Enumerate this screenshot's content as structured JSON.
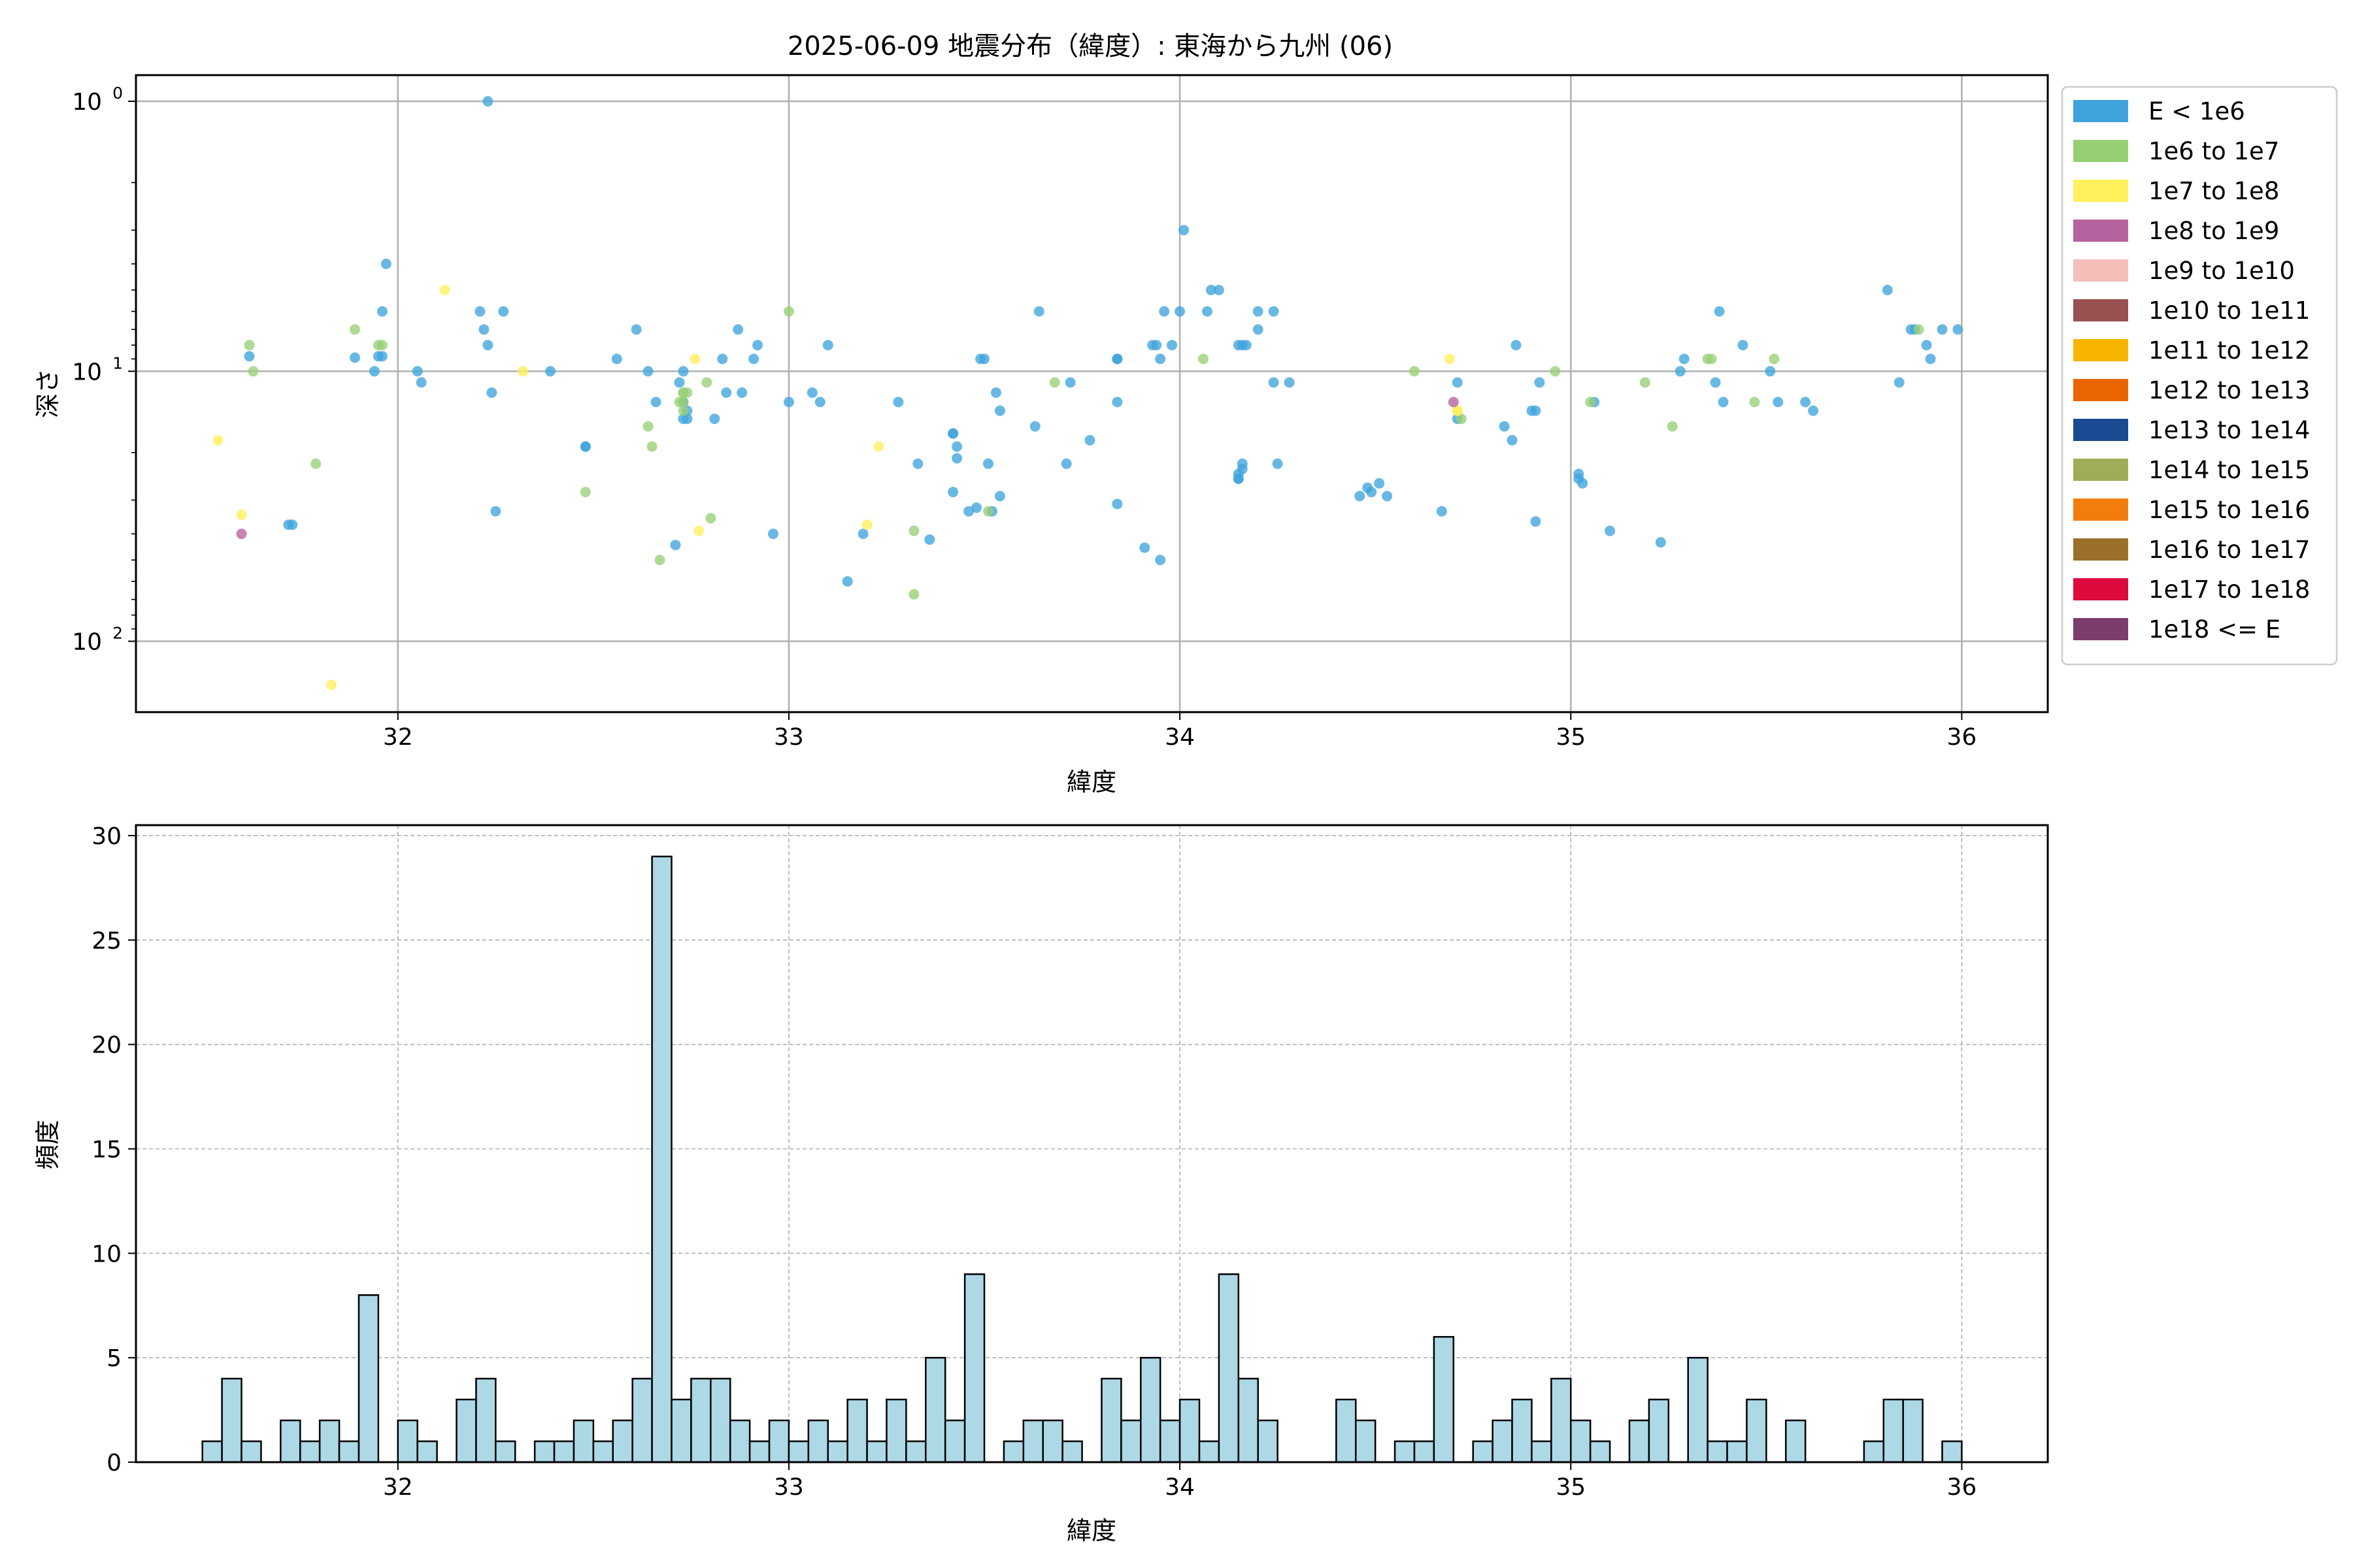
{
  "chart_data": [
    {
      "type": "scatter",
      "title": "2025-06-09 地震分布（緯度）: 東海から九州 (06)",
      "xlabel": "緯度",
      "ylabel": "深さ",
      "xlim": [
        31.33,
        36.22
      ],
      "ylim": [
        183,
        0.8
      ],
      "yscale": "log",
      "y_inverted": true,
      "x_ticks": [
        "32",
        "33",
        "34",
        "35",
        "36"
      ],
      "y_ticks": [
        {
          "label_base": "10",
          "label_exp": "0",
          "value": 1
        },
        {
          "label_base": "10",
          "label_exp": "1",
          "value": 10
        },
        {
          "label_base": "10",
          "label_exp": "2",
          "value": 100
        }
      ],
      "grid": true,
      "legend_position": "outside right, top",
      "legend": [
        {
          "label": "E < 1e6",
          "color": "#3fa4dc"
        },
        {
          "label": "1e6 to 1e7",
          "color": "#97cf74"
        },
        {
          "label": "1e7 to 1e8",
          "color": "#fff05c"
        },
        {
          "label": "1e8 to 1e9",
          "color": "#b5629f"
        },
        {
          "label": "1e9 to 1e10",
          "color": "#f5beb9"
        },
        {
          "label": "1e10 to 1e11",
          "color": "#995050"
        },
        {
          "label": "1e11 to 1e12",
          "color": "#f7b400"
        },
        {
          "label": "1e12 to 1e13",
          "color": "#ea6500"
        },
        {
          "label": "1e13 to 1e14",
          "color": "#1a4a91"
        },
        {
          "label": "1e14 to 1e15",
          "color": "#9ead57"
        },
        {
          "label": "1e15 to 1e16",
          "color": "#f27d0c"
        },
        {
          "label": "1e16 to 1e17",
          "color": "#9b712a"
        },
        {
          "label": "1e17 to 1e18",
          "color": "#dd0a3d"
        },
        {
          "label": "1e18 <= E",
          "color": "#7c3c6c"
        }
      ],
      "series": [
        {
          "color": "#3fa4dc",
          "points": [
            [
              31.62,
              8.8
            ],
            [
              31.72,
              37
            ],
            [
              31.73,
              37
            ],
            [
              31.94,
              10
            ],
            [
              31.95,
              8.8
            ],
            [
              31.96,
              8.8
            ],
            [
              31.96,
              6
            ],
            [
              31.97,
              4
            ],
            [
              31.89,
              8.9
            ],
            [
              32.05,
              10
            ],
            [
              32.06,
              11
            ],
            [
              32.21,
              6
            ],
            [
              32.22,
              7
            ],
            [
              32.23,
              8
            ],
            [
              32.24,
              12
            ],
            [
              32.27,
              6
            ],
            [
              32.25,
              33
            ],
            [
              32.23,
              1
            ],
            [
              32.39,
              10
            ],
            [
              32.48,
              19
            ],
            [
              32.48,
              19
            ],
            [
              32.56,
              9
            ],
            [
              32.61,
              7
            ],
            [
              32.64,
              10
            ],
            [
              32.66,
              13
            ],
            [
              32.71,
              44
            ],
            [
              32.73,
              13
            ],
            [
              32.73,
              15
            ],
            [
              32.74,
              14
            ],
            [
              32.74,
              15
            ],
            [
              32.73,
              10
            ],
            [
              32.72,
              11
            ],
            [
              32.81,
              15
            ],
            [
              32.83,
              9
            ],
            [
              32.84,
              12
            ],
            [
              32.87,
              7
            ],
            [
              32.88,
              12
            ],
            [
              32.91,
              9
            ],
            [
              32.92,
              8
            ],
            [
              32.96,
              40
            ],
            [
              33.0,
              13
            ],
            [
              33.06,
              12
            ],
            [
              33.08,
              13
            ],
            [
              33.1,
              8
            ],
            [
              33.15,
              60
            ],
            [
              33.19,
              40
            ],
            [
              33.28,
              13
            ],
            [
              33.33,
              22
            ],
            [
              33.36,
              42
            ],
            [
              33.42,
              17
            ],
            [
              33.42,
              17
            ],
            [
              33.43,
              19
            ],
            [
              33.43,
              21
            ],
            [
              33.42,
              28
            ],
            [
              33.46,
              33
            ],
            [
              33.48,
              32
            ],
            [
              33.5,
              9
            ],
            [
              33.49,
              9
            ],
            [
              33.51,
              22
            ],
            [
              33.52,
              33
            ],
            [
              33.53,
              12
            ],
            [
              33.54,
              14
            ],
            [
              33.54,
              29
            ],
            [
              33.63,
              16
            ],
            [
              33.64,
              6
            ],
            [
              33.71,
              22
            ],
            [
              33.72,
              11
            ],
            [
              33.77,
              18
            ],
            [
              33.84,
              9
            ],
            [
              33.84,
              9
            ],
            [
              33.84,
              13
            ],
            [
              33.84,
              31
            ],
            [
              33.91,
              45
            ],
            [
              33.93,
              8
            ],
            [
              33.94,
              8
            ],
            [
              33.95,
              50
            ],
            [
              33.95,
              9
            ],
            [
              33.96,
              6
            ],
            [
              33.98,
              8
            ],
            [
              34.0,
              6
            ],
            [
              34.01,
              3
            ],
            [
              34.07,
              6
            ],
            [
              34.08,
              5
            ],
            [
              34.1,
              5
            ],
            [
              34.15,
              8
            ],
            [
              34.16,
              8
            ],
            [
              34.15,
              25
            ],
            [
              34.15,
              24
            ],
            [
              34.15,
              25
            ],
            [
              34.16,
              23
            ],
            [
              34.16,
              22
            ],
            [
              34.17,
              8
            ],
            [
              34.2,
              6
            ],
            [
              34.2,
              7
            ],
            [
              34.24,
              6
            ],
            [
              34.24,
              11
            ],
            [
              34.25,
              22
            ],
            [
              34.28,
              11
            ],
            [
              34.46,
              29
            ],
            [
              34.48,
              27
            ],
            [
              34.49,
              28
            ],
            [
              34.51,
              26
            ],
            [
              34.53,
              29
            ],
            [
              34.67,
              33
            ],
            [
              34.71,
              15
            ],
            [
              34.71,
              11
            ],
            [
              34.83,
              16
            ],
            [
              34.85,
              18
            ],
            [
              34.86,
              8
            ],
            [
              34.9,
              14
            ],
            [
              34.92,
              11
            ],
            [
              34.91,
              36
            ],
            [
              35.02,
              24
            ],
            [
              35.02,
              25
            ],
            [
              35.03,
              26
            ],
            [
              35.06,
              13
            ],
            [
              35.1,
              39
            ],
            [
              35.23,
              43
            ],
            [
              35.28,
              10
            ],
            [
              35.29,
              9
            ],
            [
              35.37,
              11
            ],
            [
              35.39,
              13
            ],
            [
              35.38,
              6
            ],
            [
              35.44,
              8
            ],
            [
              35.51,
              10
            ],
            [
              35.53,
              13
            ],
            [
              35.6,
              13
            ],
            [
              35.62,
              14
            ],
            [
              35.81,
              5
            ],
            [
              35.84,
              11
            ],
            [
              35.88,
              7
            ],
            [
              35.91,
              8
            ],
            [
              35.92,
              9
            ],
            [
              35.95,
              7
            ],
            [
              35.99,
              7
            ],
            [
              35.87,
              7
            ],
            [
              34.91,
              14
            ]
          ]
        },
        {
          "color": "#97cf74",
          "points": [
            [
              31.62,
              8
            ],
            [
              31.63,
              10
            ],
            [
              31.79,
              22
            ],
            [
              31.89,
              7
            ],
            [
              31.95,
              8
            ],
            [
              31.96,
              8
            ],
            [
              32.48,
              28
            ],
            [
              32.64,
              16
            ],
            [
              32.65,
              19
            ],
            [
              32.67,
              50
            ],
            [
              32.73,
              14
            ],
            [
              32.74,
              12
            ],
            [
              32.73,
              12
            ],
            [
              32.72,
              13
            ],
            [
              32.73,
              12
            ],
            [
              32.73,
              13
            ],
            [
              32.79,
              11
            ],
            [
              32.8,
              35
            ],
            [
              33.0,
              6
            ],
            [
              33.32,
              39
            ],
            [
              33.32,
              67
            ],
            [
              33.51,
              33
            ],
            [
              33.68,
              11
            ],
            [
              34.06,
              9
            ],
            [
              34.6,
              10
            ],
            [
              34.72,
              15
            ],
            [
              34.96,
              10
            ],
            [
              35.05,
              13
            ],
            [
              35.19,
              11
            ],
            [
              35.26,
              16
            ],
            [
              35.35,
              9
            ],
            [
              35.36,
              9
            ],
            [
              35.47,
              13
            ],
            [
              35.52,
              9
            ],
            [
              35.89,
              7
            ]
          ]
        },
        {
          "color": "#fff05c",
          "points": [
            [
              31.54,
              18
            ],
            [
              31.6,
              34
            ],
            [
              31.83,
              145
            ],
            [
              32.12,
              5
            ],
            [
              32.32,
              10
            ],
            [
              32.76,
              9
            ],
            [
              32.77,
              39
            ],
            [
              33.2,
              37
            ],
            [
              33.23,
              19
            ],
            [
              34.69,
              9
            ],
            [
              34.71,
              14
            ],
            [
              34.71,
              14
            ]
          ]
        },
        {
          "color": "#b5629f",
          "points": [
            [
              31.6,
              40
            ],
            [
              34.7,
              13
            ]
          ]
        }
      ]
    },
    {
      "type": "bar",
      "title": "",
      "xlabel": "緯度",
      "ylabel": "頻度",
      "xlim": [
        31.33,
        36.22
      ],
      "ylim": [
        0,
        30.5
      ],
      "x_ticks": [
        "32",
        "33",
        "34",
        "35",
        "36"
      ],
      "y_ticks": [
        "0",
        "5",
        "10",
        "15",
        "20",
        "25",
        "30"
      ],
      "grid": "dashed",
      "bar_color": "#add8e6",
      "edge_color": "#000000",
      "bin_start": 31.5,
      "bin_width": 0.05,
      "counts": [
        1,
        4,
        1,
        0,
        2,
        1,
        2,
        1,
        8,
        0,
        2,
        1,
        0,
        3,
        4,
        1,
        0,
        1,
        1,
        2,
        1,
        2,
        4,
        29,
        3,
        4,
        4,
        2,
        1,
        2,
        1,
        2,
        1,
        3,
        1,
        3,
        1,
        5,
        2,
        9,
        0,
        1,
        2,
        2,
        1,
        0,
        4,
        2,
        5,
        2,
        3,
        1,
        9,
        4,
        2,
        0,
        0,
        0,
        3,
        2,
        0,
        1,
        1,
        6,
        0,
        1,
        2,
        3,
        1,
        4,
        2,
        1,
        0,
        2,
        3,
        0,
        5,
        1,
        1,
        3,
        0,
        2,
        0,
        0,
        0,
        1,
        3,
        3,
        0,
        1
      ]
    }
  ]
}
